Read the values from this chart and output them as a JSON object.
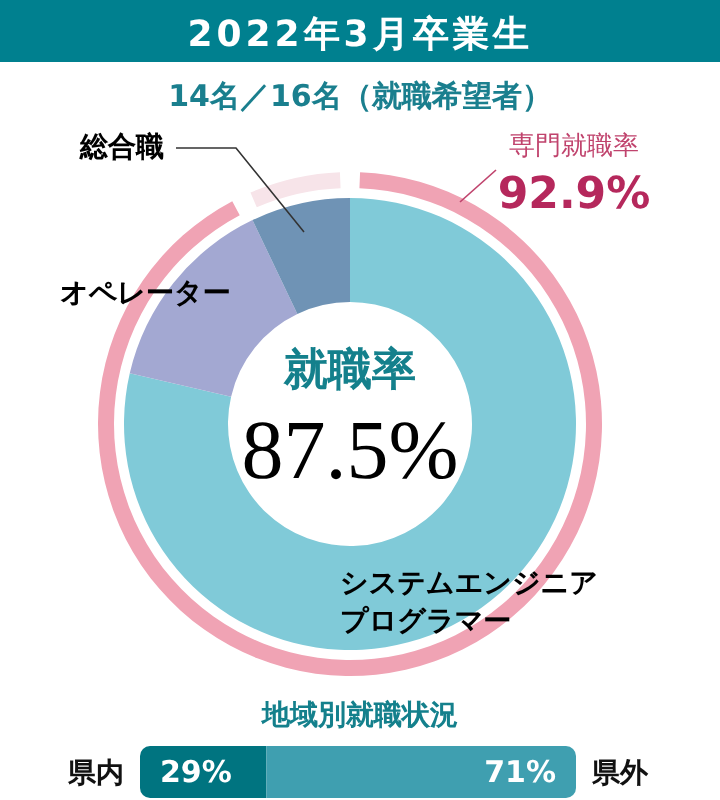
{
  "chart_data": [
    {
      "type": "donut",
      "title": "2022年3月卒業生",
      "subtitle": "14名／16名（就職希望者）",
      "categories": [
        "システムエンジニアプログラマー",
        "オペレーター",
        "総合職"
      ],
      "values": [
        78.6,
        14.3,
        7.1
      ],
      "colors": [
        "#80cad8",
        "#a3a8d2",
        "#6f93b5"
      ],
      "annotations": [
        "就職率",
        "87.5%"
      ]
    },
    {
      "type": "donut",
      "categories": [
        "専門就職率",
        null
      ],
      "values": [
        92.9,
        7.1
      ],
      "colors": [
        "#f0a3b4",
        "#f7e4e9"
      ],
      "value_labels": [
        "92.9%",
        null
      ]
    },
    {
      "type": "bar",
      "orientation": "horizontal",
      "stacked": true,
      "title": "地域別就職状況",
      "categories": [
        null
      ],
      "series": [
        {
          "name": "県内",
          "color": "#007480",
          "values": [
            29
          ],
          "value_labels": [
            "29%"
          ]
        },
        {
          "name": "県外",
          "color": "#3f9fb0",
          "values": [
            71
          ],
          "value_labels": [
            "71%"
          ]
        }
      ]
    }
  ]
}
